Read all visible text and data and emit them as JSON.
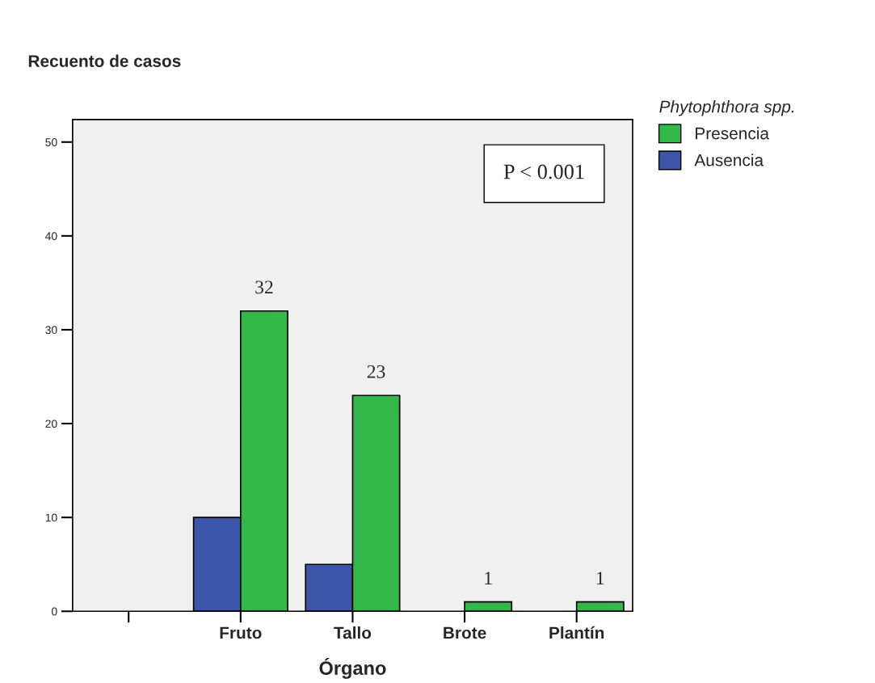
{
  "chart_data": {
    "type": "bar",
    "ylabel": "Recuento de casos",
    "xlabel": "Órgano",
    "legend_title": "Phytophthora spp.",
    "categories": [
      null,
      "Fruto",
      "Tallo",
      "Brote",
      "Plantín"
    ],
    "series": [
      {
        "name": "Ausencia",
        "color": "#3b55a8",
        "values": [
          null,
          10,
          5,
          null,
          null
        ]
      },
      {
        "name": "Presencia",
        "color": "#33b84a",
        "values": [
          null,
          32,
          23,
          1,
          1
        ],
        "value_labels": [
          null,
          "32",
          "23",
          "1",
          "1"
        ]
      }
    ],
    "ylim": [
      0,
      52.4
    ],
    "yticks": [
      0,
      10,
      20,
      30,
      40,
      50
    ],
    "grid": false,
    "legend": "top right",
    "annotations": [
      "P < 0.001"
    ]
  }
}
